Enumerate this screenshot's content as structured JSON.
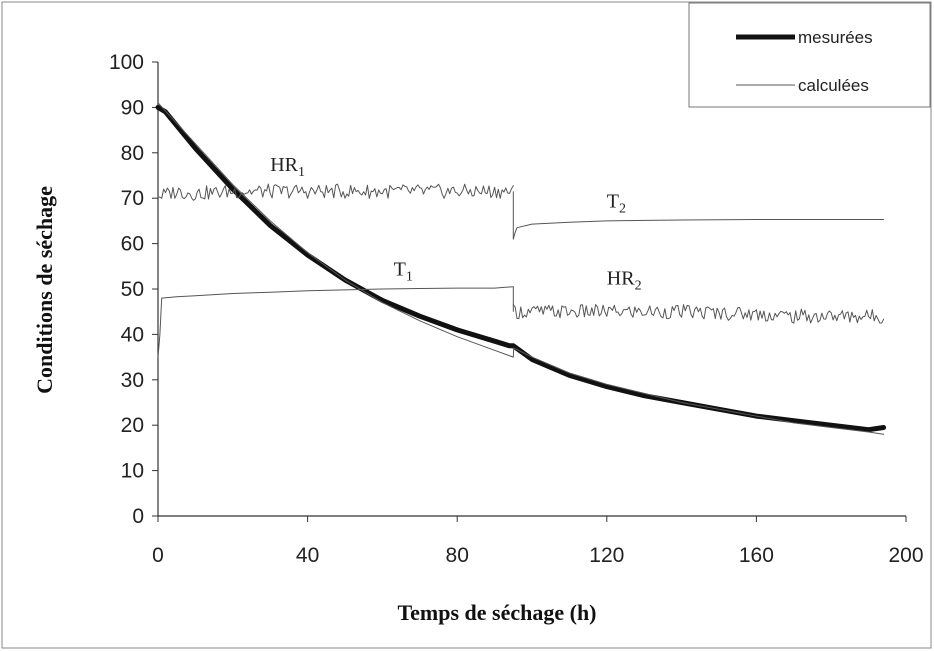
{
  "chart_data": {
    "type": "line",
    "title": "",
    "xlabel": "Temps de séchage (h)",
    "ylabel": "Conditions de séchage",
    "xlim": [
      0,
      200
    ],
    "ylim": [
      0,
      100
    ],
    "xticks": [
      0,
      40,
      80,
      120,
      160,
      200
    ],
    "yticks": [
      0,
      10,
      20,
      30,
      40,
      50,
      60,
      70,
      80,
      90,
      100
    ],
    "grid": false,
    "legend": {
      "position": "top-right",
      "entries": [
        {
          "label": "mesurées",
          "style": "thick"
        },
        {
          "label": "calculées",
          "style": "thin"
        }
      ]
    },
    "annotations": [
      {
        "text": "HR",
        "sub": "1",
        "x": 30,
        "y": 76
      },
      {
        "text": "T",
        "sub": "1",
        "x": 63,
        "y": 53
      },
      {
        "text": "T",
        "sub": "2",
        "x": 120,
        "y": 68
      },
      {
        "text": "HR",
        "sub": "2",
        "x": 120,
        "y": 51
      }
    ],
    "series": [
      {
        "name": "mesurées",
        "style": "thick",
        "x": [
          0,
          2,
          5,
          10,
          15,
          20,
          30,
          40,
          50,
          60,
          70,
          80,
          90,
          94,
          95,
          100,
          110,
          120,
          130,
          140,
          150,
          160,
          170,
          180,
          190,
          194
        ],
        "y": [
          90,
          89,
          86,
          81,
          76.5,
          72,
          64,
          57.5,
          52,
          47.5,
          44,
          41,
          38.5,
          37.5,
          37.5,
          34.5,
          31,
          28.5,
          26.5,
          25,
          23.5,
          22,
          21,
          20,
          19,
          19.5
        ]
      },
      {
        "name": "calculées",
        "style": "thin",
        "x": [
          0,
          5,
          10,
          20,
          30,
          40,
          50,
          60,
          70,
          80,
          90,
          95,
          95.1,
          100,
          110,
          120,
          130,
          140,
          150,
          160,
          170,
          180,
          190,
          194
        ],
        "y": [
          91,
          86.5,
          82,
          73,
          65,
          58,
          52,
          47,
          43,
          39.5,
          36.5,
          35,
          37,
          35,
          31.5,
          29,
          27,
          25,
          23.5,
          22,
          20.5,
          19.5,
          18.5,
          18
        ]
      },
      {
        "name": "HR1",
        "style": "noisy",
        "x": [
          0,
          0.5,
          5,
          10,
          20,
          30,
          40,
          50,
          60,
          70,
          80,
          90,
          95
        ],
        "y": [
          71,
          70.5,
          71.5,
          71,
          71.5,
          71.5,
          71.5,
          71.5,
          71.5,
          71.5,
          71.5,
          71.5,
          71.5
        ]
      },
      {
        "name": "T1",
        "style": "thin",
        "x": [
          0,
          0.5,
          1,
          5,
          10,
          20,
          30,
          40,
          50,
          60,
          70,
          80,
          90,
          95
        ],
        "y": [
          35,
          40,
          48,
          48.3,
          48.5,
          49,
          49.3,
          49.6,
          49.8,
          50,
          50.1,
          50.2,
          50.2,
          50.5
        ]
      },
      {
        "name": "T2",
        "style": "thin",
        "x": [
          95,
          95.5,
          96,
          100,
          110,
          120,
          140,
          160,
          180,
          194
        ],
        "y": [
          61,
          62.5,
          63.5,
          64.3,
          64.7,
          65,
          65.2,
          65.3,
          65.3,
          65.3
        ]
      },
      {
        "name": "HR2",
        "style": "noisy",
        "x": [
          95,
          100,
          120,
          140,
          160,
          170,
          180,
          194
        ],
        "y": [
          45,
          45,
          45,
          45,
          44.5,
          44,
          44,
          44
        ]
      }
    ]
  }
}
